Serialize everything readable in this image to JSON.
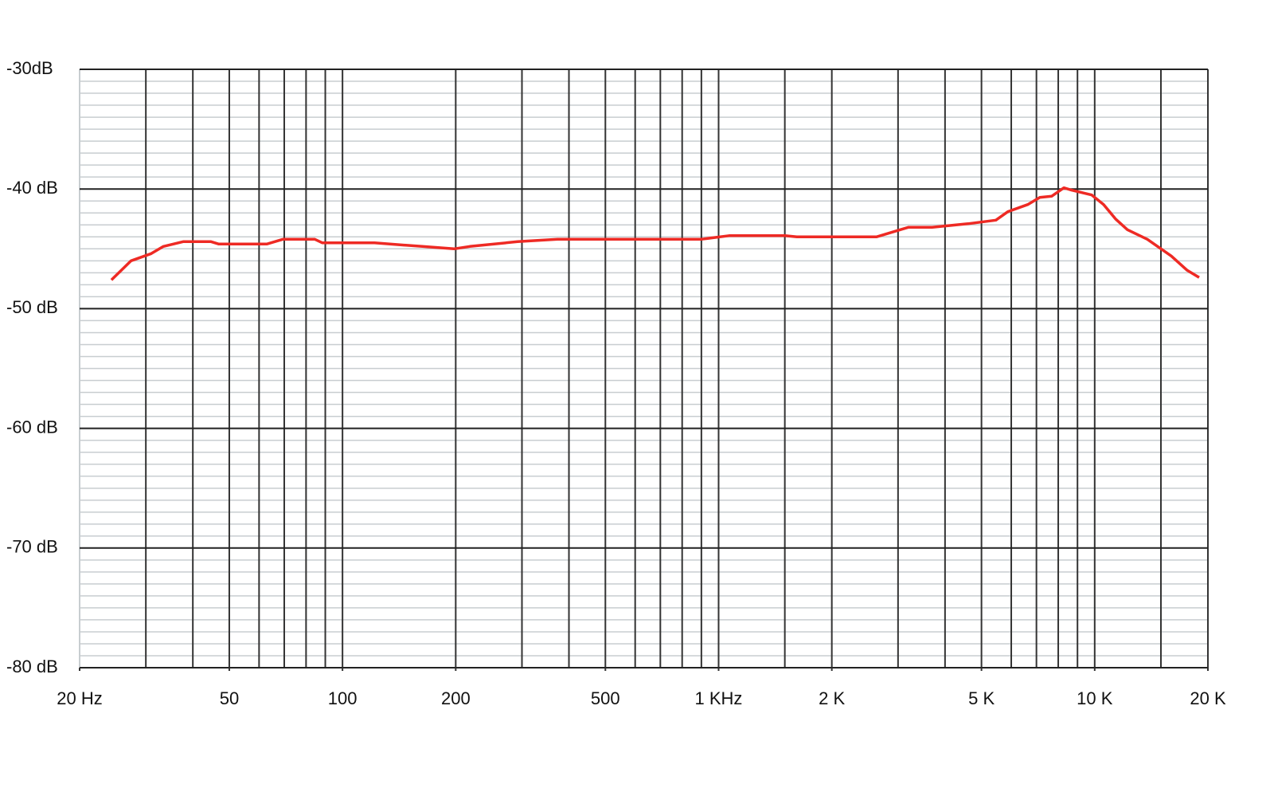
{
  "chart_data": {
    "type": "line",
    "x": [
      24.3,
      27.4,
      31,
      33.4,
      37.7,
      44.7,
      46.9,
      62.9,
      69.4,
      84.4,
      88.4,
      121.6,
      163,
      198,
      218,
      292,
      373,
      898,
      1066,
      1500,
      1614,
      2628,
      3040,
      3194,
      3698,
      4604,
      5460,
      5876,
      6640,
      7146,
      7690,
      8280,
      8692,
      9820,
      10560,
      11360,
      12220,
      13800,
      15980,
      17620,
      18960
    ],
    "values": [
      -47.6,
      -46.0,
      -45.4,
      -44.8,
      -44.4,
      -44.4,
      -44.6,
      -44.6,
      -44.2,
      -44.2,
      -44.5,
      -44.5,
      -44.8,
      -45.0,
      -44.8,
      -44.4,
      -44.2,
      -44.2,
      -43.9,
      -43.9,
      -44.0,
      -44.0,
      -43.4,
      -43.2,
      -43.2,
      -42.9,
      -42.6,
      -41.9,
      -41.3,
      -40.7,
      -40.6,
      -39.9,
      -40.1,
      -40.5,
      -41.3,
      -42.5,
      -43.4,
      -44.2,
      -45.6,
      -46.8,
      -47.4
    ],
    "color": "#ee2a24",
    "xscale": "log",
    "xlim": [
      20,
      20000
    ],
    "xticks": [
      {
        "value": 20,
        "label": "20 Hz"
      },
      50,
      100,
      200,
      500,
      {
        "value": 1000,
        "label": "1 KHz"
      },
      {
        "value": 2000,
        "label": "2 K"
      },
      {
        "value": 5000,
        "label": "5 K"
      },
      {
        "value": 10000,
        "label": "10 K"
      },
      {
        "value": 20000,
        "label": "20 K"
      }
    ],
    "xgrid": [
      30,
      40,
      50,
      60,
      70,
      80,
      90,
      100,
      200,
      300,
      400,
      500,
      600,
      700,
      800,
      900,
      1000,
      1500,
      2000,
      3000,
      4000,
      5000,
      6000,
      7000,
      8000,
      9000,
      10000,
      15000,
      20000
    ],
    "ylim": [
      -80,
      -30
    ],
    "yticks": [
      {
        "value": -30,
        "label": "-30dB"
      },
      {
        "value": -40,
        "label": "-40 dB"
      },
      {
        "value": -50,
        "label": "-50 dB"
      },
      {
        "value": -60,
        "label": "-60 dB"
      },
      {
        "value": -70,
        "label": "-70 dB"
      },
      {
        "value": -80,
        "label": "-80 dB"
      }
    ],
    "yminor_step": 1,
    "grid": true
  }
}
